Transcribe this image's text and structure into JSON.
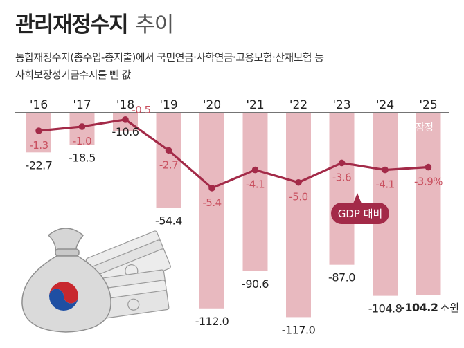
{
  "header": {
    "title": "관리재정수지",
    "title_suffix": "추이",
    "subtitle_line1": "통합재정수지(총수입-총지출)에서 국민연금·사학연금·고용보험·산재보험 등",
    "subtitle_line2": "사회보장성기금수지를 뺀 값"
  },
  "chart_data": {
    "type": "bar+line",
    "title": "관리재정수지 추이",
    "categories": [
      "'16",
      "'17",
      "'18",
      "'19",
      "'20",
      "'21",
      "'22",
      "'23",
      "'24",
      "'25"
    ],
    "series": [
      {
        "name": "관리재정수지",
        "unit": "조원",
        "values": [
          -22.7,
          -18.5,
          -10.6,
          -54.4,
          -112.0,
          -90.6,
          -117.0,
          -87.0,
          -104.8,
          -104.2
        ],
        "labels": [
          "-22.7",
          "-18.5",
          "-10.6",
          "-54.4",
          "-112.0",
          "-90.6",
          "-117.0",
          "-87.0",
          "-104.8",
          "-104.2"
        ]
      },
      {
        "name": "GDP 대비",
        "unit": "%",
        "values": [
          -1.3,
          -1.0,
          -0.5,
          -2.7,
          -5.4,
          -4.1,
          -5.0,
          -3.6,
          -4.1,
          -3.9
        ],
        "labels": [
          "-1.3",
          "-1.0",
          "-0.5",
          "-2.7",
          "-5.4",
          "-4.1",
          "-5.0",
          "-3.6",
          "-4.1",
          "-3.9%"
        ]
      }
    ],
    "legend_label": "GDP 대비",
    "provisional_label": "잠정",
    "last_value_unit": "조원",
    "bar_range": [
      -117,
      0
    ],
    "line_range": [
      -5.4,
      -0.5
    ]
  },
  "colors": {
    "bar": "#e8b9bf",
    "line": "#a32a48",
    "baseline": "#222222",
    "text": "#222222",
    "pct_text": "#c9505f",
    "pct_text_light": "#f6e6e9",
    "bag": "#d8d8d8",
    "money": "#dcdcdc"
  },
  "decorations": {
    "moneybag_icon": "money-bag-icon",
    "cash_icon": "cash-stack-icon"
  }
}
